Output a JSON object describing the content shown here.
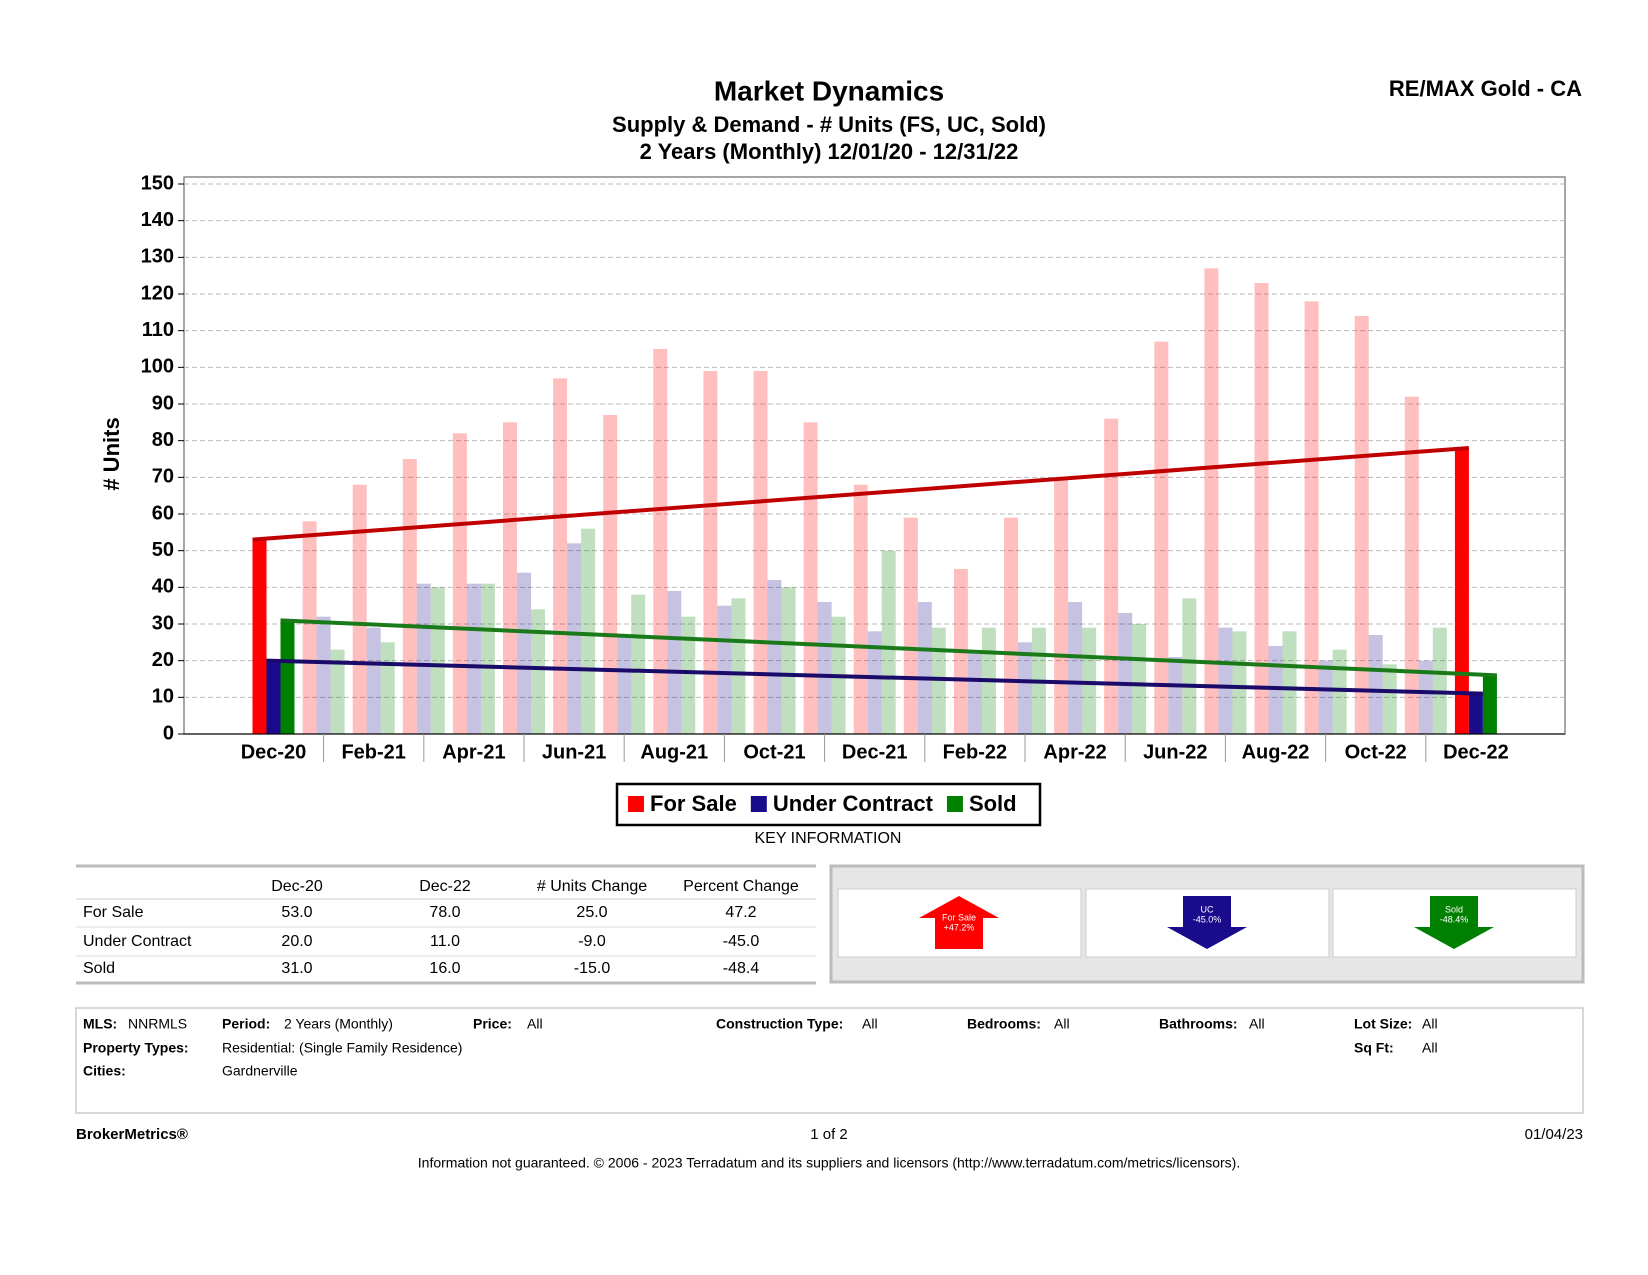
{
  "header": {
    "company": "RE/MAX Gold - CA"
  },
  "chart_data": {
    "type": "bar",
    "title": "Market Dynamics",
    "subtitle": [
      "Supply & Demand - # Units (FS, UC, Sold)",
      "2 Years (Monthly) 12/01/20 - 12/31/22"
    ],
    "y_label": "# Units",
    "categories": [
      "Dec-20",
      null,
      "Feb-21",
      null,
      "Apr-21",
      null,
      "Jun-21",
      null,
      "Aug-21",
      null,
      "Oct-21",
      null,
      "Dec-21",
      null,
      "Feb-22",
      null,
      "Apr-22",
      null,
      "Jun-22",
      null,
      "Aug-22",
      null,
      "Oct-22",
      null,
      "Dec-22"
    ],
    "series": [
      {
        "name": "For Sale",
        "color": "#ff0000",
        "trend_color": "#c00000",
        "values": [
          53,
          58,
          68,
          75,
          82,
          85,
          97,
          87,
          105,
          99,
          99,
          85,
          68,
          59,
          45,
          59,
          70,
          86,
          107,
          127,
          123,
          118,
          114,
          92,
          78
        ]
      },
      {
        "name": "Under Contract",
        "color": "#1a0a8c",
        "trend_color": "#1a0a6a",
        "values": [
          20,
          32,
          29,
          41,
          41,
          44,
          52,
          27,
          39,
          35,
          42,
          36,
          28,
          36,
          22,
          25,
          36,
          33,
          21,
          29,
          24,
          20,
          27,
          20,
          11
        ]
      },
      {
        "name": "Sold",
        "color": "#008000",
        "trend_color": "#1a7a1a",
        "values": [
          31,
          23,
          25,
          40,
          41,
          34,
          56,
          38,
          32,
          37,
          40,
          32,
          50,
          29,
          29,
          29,
          29,
          30,
          37,
          28,
          28,
          23,
          19,
          29,
          16
        ]
      }
    ],
    "ylim": [
      0,
      150
    ],
    "yticks": [
      0,
      10,
      20,
      30,
      40,
      50,
      60,
      70,
      80,
      90,
      100,
      110,
      120,
      130,
      140,
      150
    ],
    "grid": true
  },
  "key_label": "KEY INFORMATION",
  "key_table": {
    "columns": [
      "Dec-20",
      "Dec-22",
      "# Units Change",
      "Percent Change"
    ],
    "rows": [
      {
        "label": "For Sale",
        "cells": [
          "53.0",
          "78.0",
          "25.0",
          "47.2"
        ]
      },
      {
        "label": "Under Contract",
        "cells": [
          "20.0",
          "11.0",
          "-9.0",
          "-45.0"
        ]
      },
      {
        "label": "Sold",
        "cells": [
          "31.0",
          "16.0",
          "-15.0",
          "-48.4"
        ]
      }
    ]
  },
  "indicators": [
    {
      "label": "For Sale",
      "change": "+47.2%",
      "direction": "up",
      "color": "#ff0000"
    },
    {
      "label": "UC",
      "change": "-45.0%",
      "direction": "down",
      "color": "#1a0a8c"
    },
    {
      "label": "Sold",
      "change": "-48.4%",
      "direction": "down",
      "color": "#008000"
    }
  ],
  "filters": [
    {
      "label": "MLS:",
      "value": "NNRMLS"
    },
    {
      "label": "Period:",
      "value": "2 Years (Monthly)"
    },
    {
      "label": "Price:",
      "value": "All"
    },
    {
      "label": "Construction Type:",
      "value": "All"
    },
    {
      "label": "Bedrooms:",
      "value": "All"
    },
    {
      "label": "Bathrooms:",
      "value": "All"
    },
    {
      "label": "Lot Size:",
      "value": "All"
    },
    {
      "label": "Property Types:",
      "value": "Residential: (Single Family Residence)"
    },
    {
      "label": "Sq Ft:",
      "value": "All"
    },
    {
      "label": "Cities:",
      "value": "Gardnerville"
    }
  ],
  "footer": {
    "brand": "BrokerMetrics®",
    "page": "1 of 2",
    "date": "01/04/23",
    "disclaimer": "Information not guaranteed.  © 2006 - 2023 Terradatum and its suppliers and licensors (http://www.terradatum.com/metrics/licensors)."
  }
}
